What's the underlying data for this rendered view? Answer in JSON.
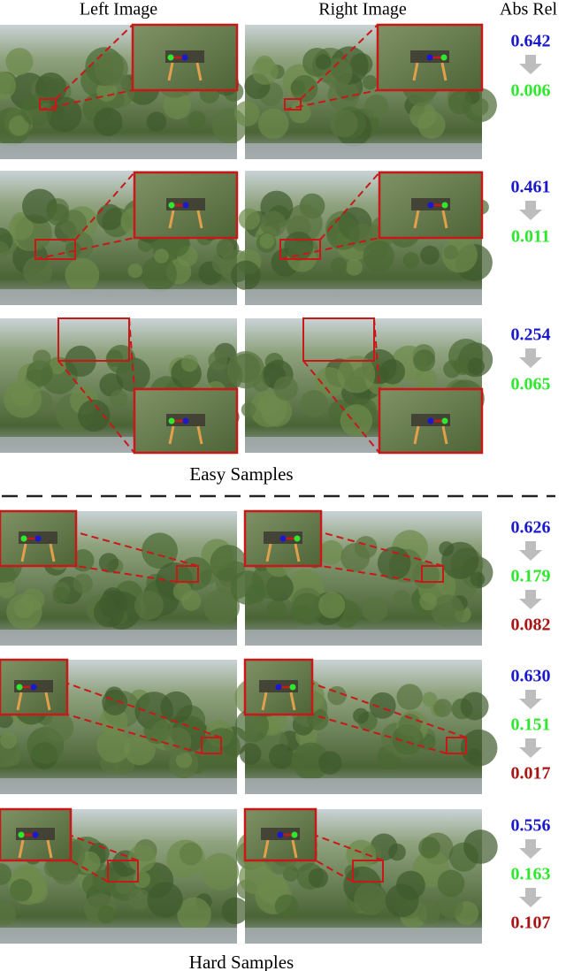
{
  "header": {
    "left": "Left Image",
    "right": "Right Image",
    "metric": "Abs Rel"
  },
  "groups": [
    {
      "label": "Easy Samples",
      "rows": [
        {
          "values": [
            "0.642",
            "0.006"
          ]
        },
        {
          "values": [
            "0.461",
            "0.011"
          ]
        },
        {
          "values": [
            "0.254",
            "0.065"
          ]
        }
      ]
    },
    {
      "label": "Hard Samples",
      "rows": [
        {
          "values": [
            "0.626",
            "0.179",
            "0.082"
          ]
        },
        {
          "values": [
            "0.630",
            "0.151",
            "0.017"
          ]
        },
        {
          "values": [
            "0.556",
            "0.163",
            "0.107"
          ]
        }
      ]
    }
  ]
}
